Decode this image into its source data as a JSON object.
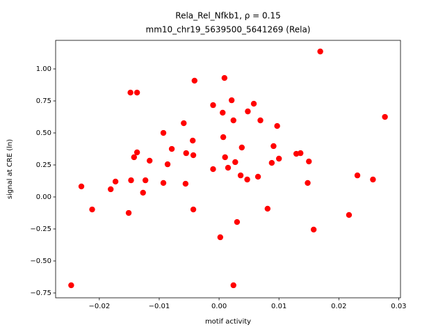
{
  "chart_data": {
    "type": "scatter",
    "title": "Rela_Rel_Nfkb1, ρ = 0.15",
    "subtitle": "mm10_chr19_5639500_5641269 (Rela)",
    "x_label": "motif activity",
    "y_label": "signal at CRE (ln)",
    "color": "#ff0000",
    "x": [
      -0.0247,
      -0.023,
      -0.0212,
      -0.0181,
      -0.0173,
      -0.0151,
      -0.0148,
      -0.0147,
      -0.0142,
      -0.0137,
      -0.0137,
      -0.0127,
      -0.0123,
      -0.0116,
      -0.0093,
      -0.0093,
      -0.0086,
      -0.0079,
      -0.0059,
      -0.0056,
      -0.0055,
      -0.0044,
      -0.0043,
      -0.0043,
      -0.0041,
      -0.001,
      -0.001,
      0.0002,
      0.0006,
      0.0007,
      0.0009,
      0.001,
      0.0015,
      0.0021,
      0.0024,
      0.0024,
      0.0027,
      0.003,
      0.0036,
      0.0038,
      0.0047,
      0.0048,
      0.0058,
      0.0065,
      0.0069,
      0.0081,
      0.0088,
      0.0091,
      0.0097,
      0.01,
      0.0129,
      0.0136,
      0.0148,
      0.015,
      0.0158,
      0.0169,
      0.0217,
      0.0231,
      0.0257,
      0.0277
    ],
    "values": [
      -0.69,
      0.082,
      -0.098,
      0.06,
      0.12,
      -0.125,
      0.815,
      0.13,
      0.31,
      0.815,
      0.348,
      0.033,
      0.13,
      0.283,
      0.5,
      0.109,
      0.255,
      0.375,
      0.576,
      0.103,
      0.342,
      0.44,
      0.326,
      -0.098,
      0.908,
      0.717,
      0.217,
      -0.315,
      0.658,
      0.467,
      0.929,
      0.31,
      0.228,
      0.755,
      0.598,
      -0.69,
      0.272,
      -0.196,
      0.168,
      0.386,
      0.136,
      0.668,
      0.728,
      0.158,
      0.598,
      -0.092,
      0.266,
      0.397,
      0.554,
      0.299,
      0.337,
      0.342,
      0.109,
      0.277,
      -0.255,
      1.136,
      -0.141,
      0.168,
      0.136,
      0.625
    ],
    "xlim": [
      -0.0273,
      0.0303
    ],
    "ylim": [
      -0.788,
      1.223
    ],
    "xticks": [
      {
        "value": -0.02,
        "label": "−0.02"
      },
      {
        "value": -0.01,
        "label": "−0.01"
      },
      {
        "value": 0,
        "label": "0.00"
      },
      {
        "value": 0.01,
        "label": "0.01"
      },
      {
        "value": 0.02,
        "label": "0.02"
      },
      {
        "value": 0.03,
        "label": "0.03"
      }
    ],
    "yticks": [
      {
        "value": -0.75,
        "label": "−0.75"
      },
      {
        "value": -0.5,
        "label": "−0.50"
      },
      {
        "value": -0.25,
        "label": "−0.25"
      },
      {
        "value": 0,
        "label": "0.00"
      },
      {
        "value": 0.25,
        "label": "0.25"
      },
      {
        "value": 0.5,
        "label": "0.50"
      },
      {
        "value": 0.75,
        "label": "0.75"
      },
      {
        "value": 1,
        "label": "1.00"
      }
    ]
  }
}
